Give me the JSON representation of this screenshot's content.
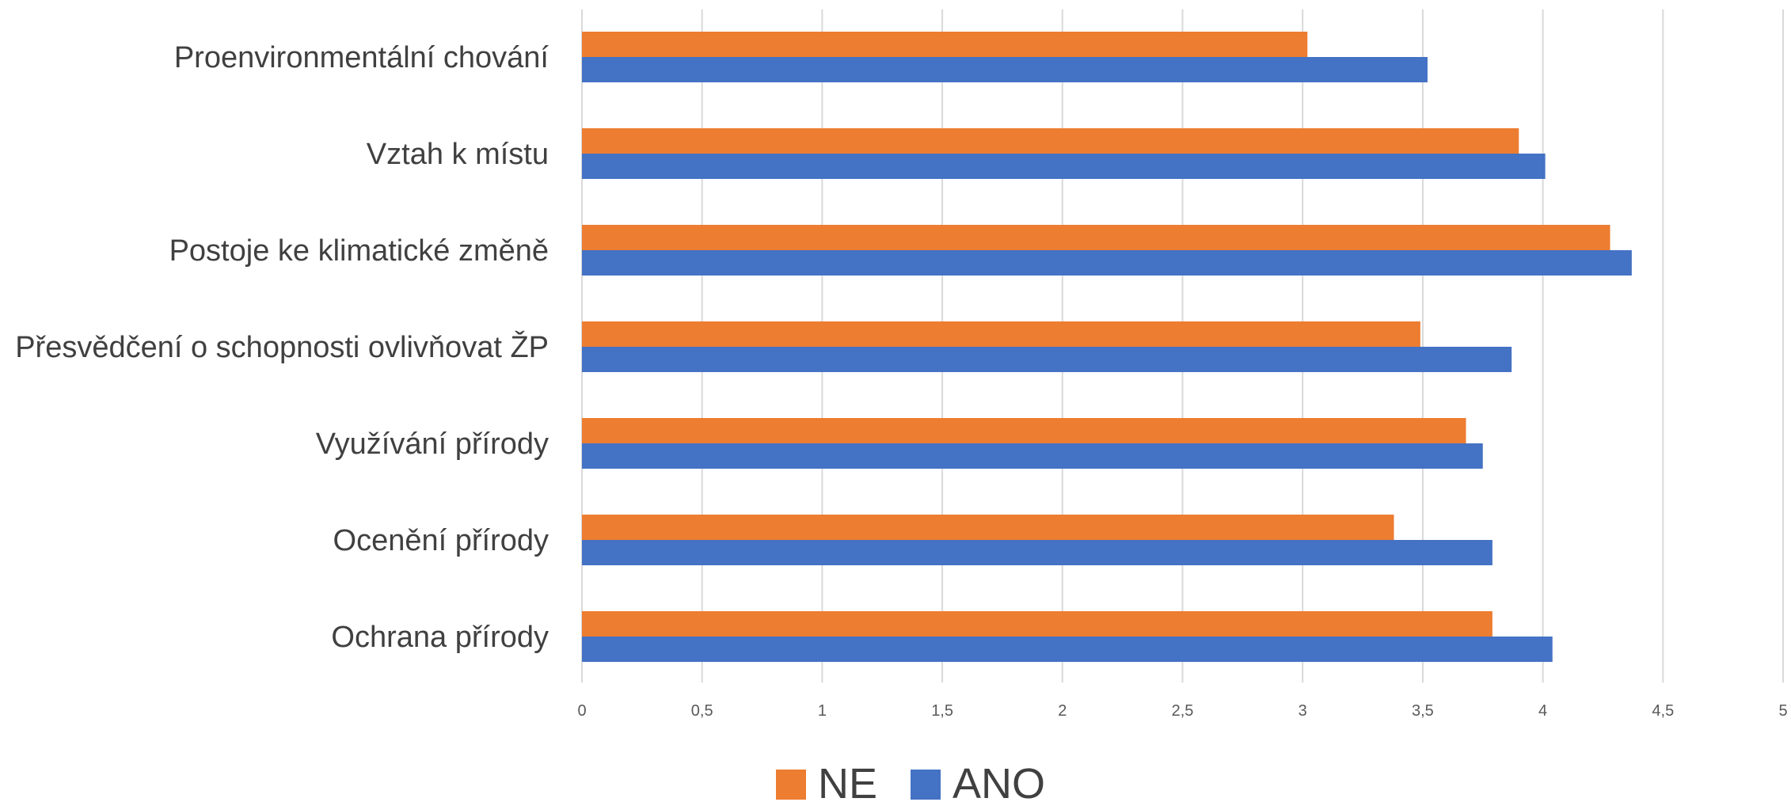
{
  "chart_data": {
    "type": "bar",
    "orientation": "horizontal",
    "categories": [
      "Proenvironmentální chování",
      "Vztah k místu",
      "Postoje ke klimatické změně",
      "Přesvědčení o schopnosti ovlivňovat ŽP",
      "Využívání přírody",
      "Ocenění přírody",
      "Ochrana přírody"
    ],
    "series": [
      {
        "name": "NE",
        "color": "#ED7D31",
        "values": [
          3.02,
          3.9,
          4.28,
          3.49,
          3.68,
          3.38,
          3.79
        ]
      },
      {
        "name": "ANO",
        "color": "#4472C4",
        "values": [
          3.52,
          4.01,
          4.37,
          3.87,
          3.75,
          3.79,
          4.04
        ]
      }
    ],
    "xlim": [
      0,
      5
    ],
    "xticks": [
      0,
      0.5,
      1,
      1.5,
      2,
      2.5,
      3,
      3.5,
      4,
      4.5,
      5
    ],
    "xtick_labels": [
      "0",
      "0,5",
      "1",
      "1,5",
      "2",
      "2,5",
      "3",
      "3,5",
      "4",
      "4,5",
      "5"
    ],
    "grid": true,
    "gridline_color": "#D9D9D9",
    "legend_position": "bottom",
    "title": "",
    "xlabel": "",
    "ylabel": ""
  }
}
